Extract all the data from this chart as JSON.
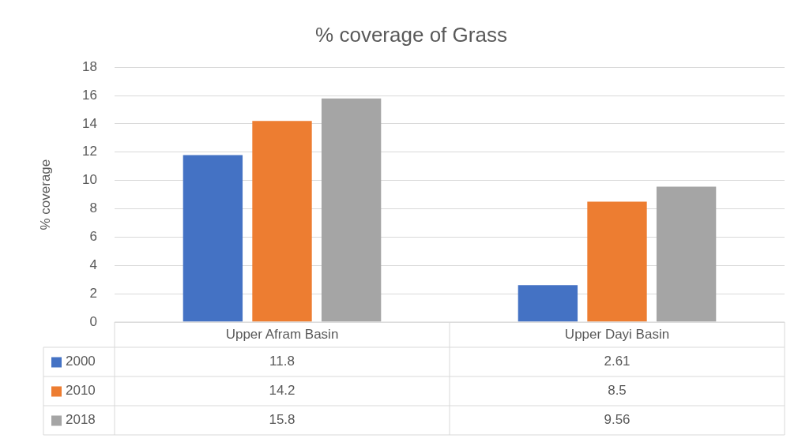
{
  "chart_data": {
    "type": "bar",
    "title": "% coverage of Grass",
    "ylabel": "% coverage",
    "categories": [
      "Upper Afram Basin",
      "Upper Dayi Basin"
    ],
    "series": [
      {
        "name": "2000",
        "color": "#4472c4",
        "values": [
          11.8,
          2.61
        ]
      },
      {
        "name": "2010",
        "color": "#ed7d31",
        "values": [
          14.2,
          8.5
        ]
      },
      {
        "name": "2018",
        "color": "#a5a5a5",
        "values": [
          15.8,
          9.56
        ]
      }
    ],
    "ylim": [
      0,
      18
    ],
    "yticks": [
      0,
      2,
      4,
      6,
      8,
      10,
      12,
      14,
      16,
      18
    ],
    "grid": "y",
    "data_labels": true,
    "legend": "bottom left"
  }
}
